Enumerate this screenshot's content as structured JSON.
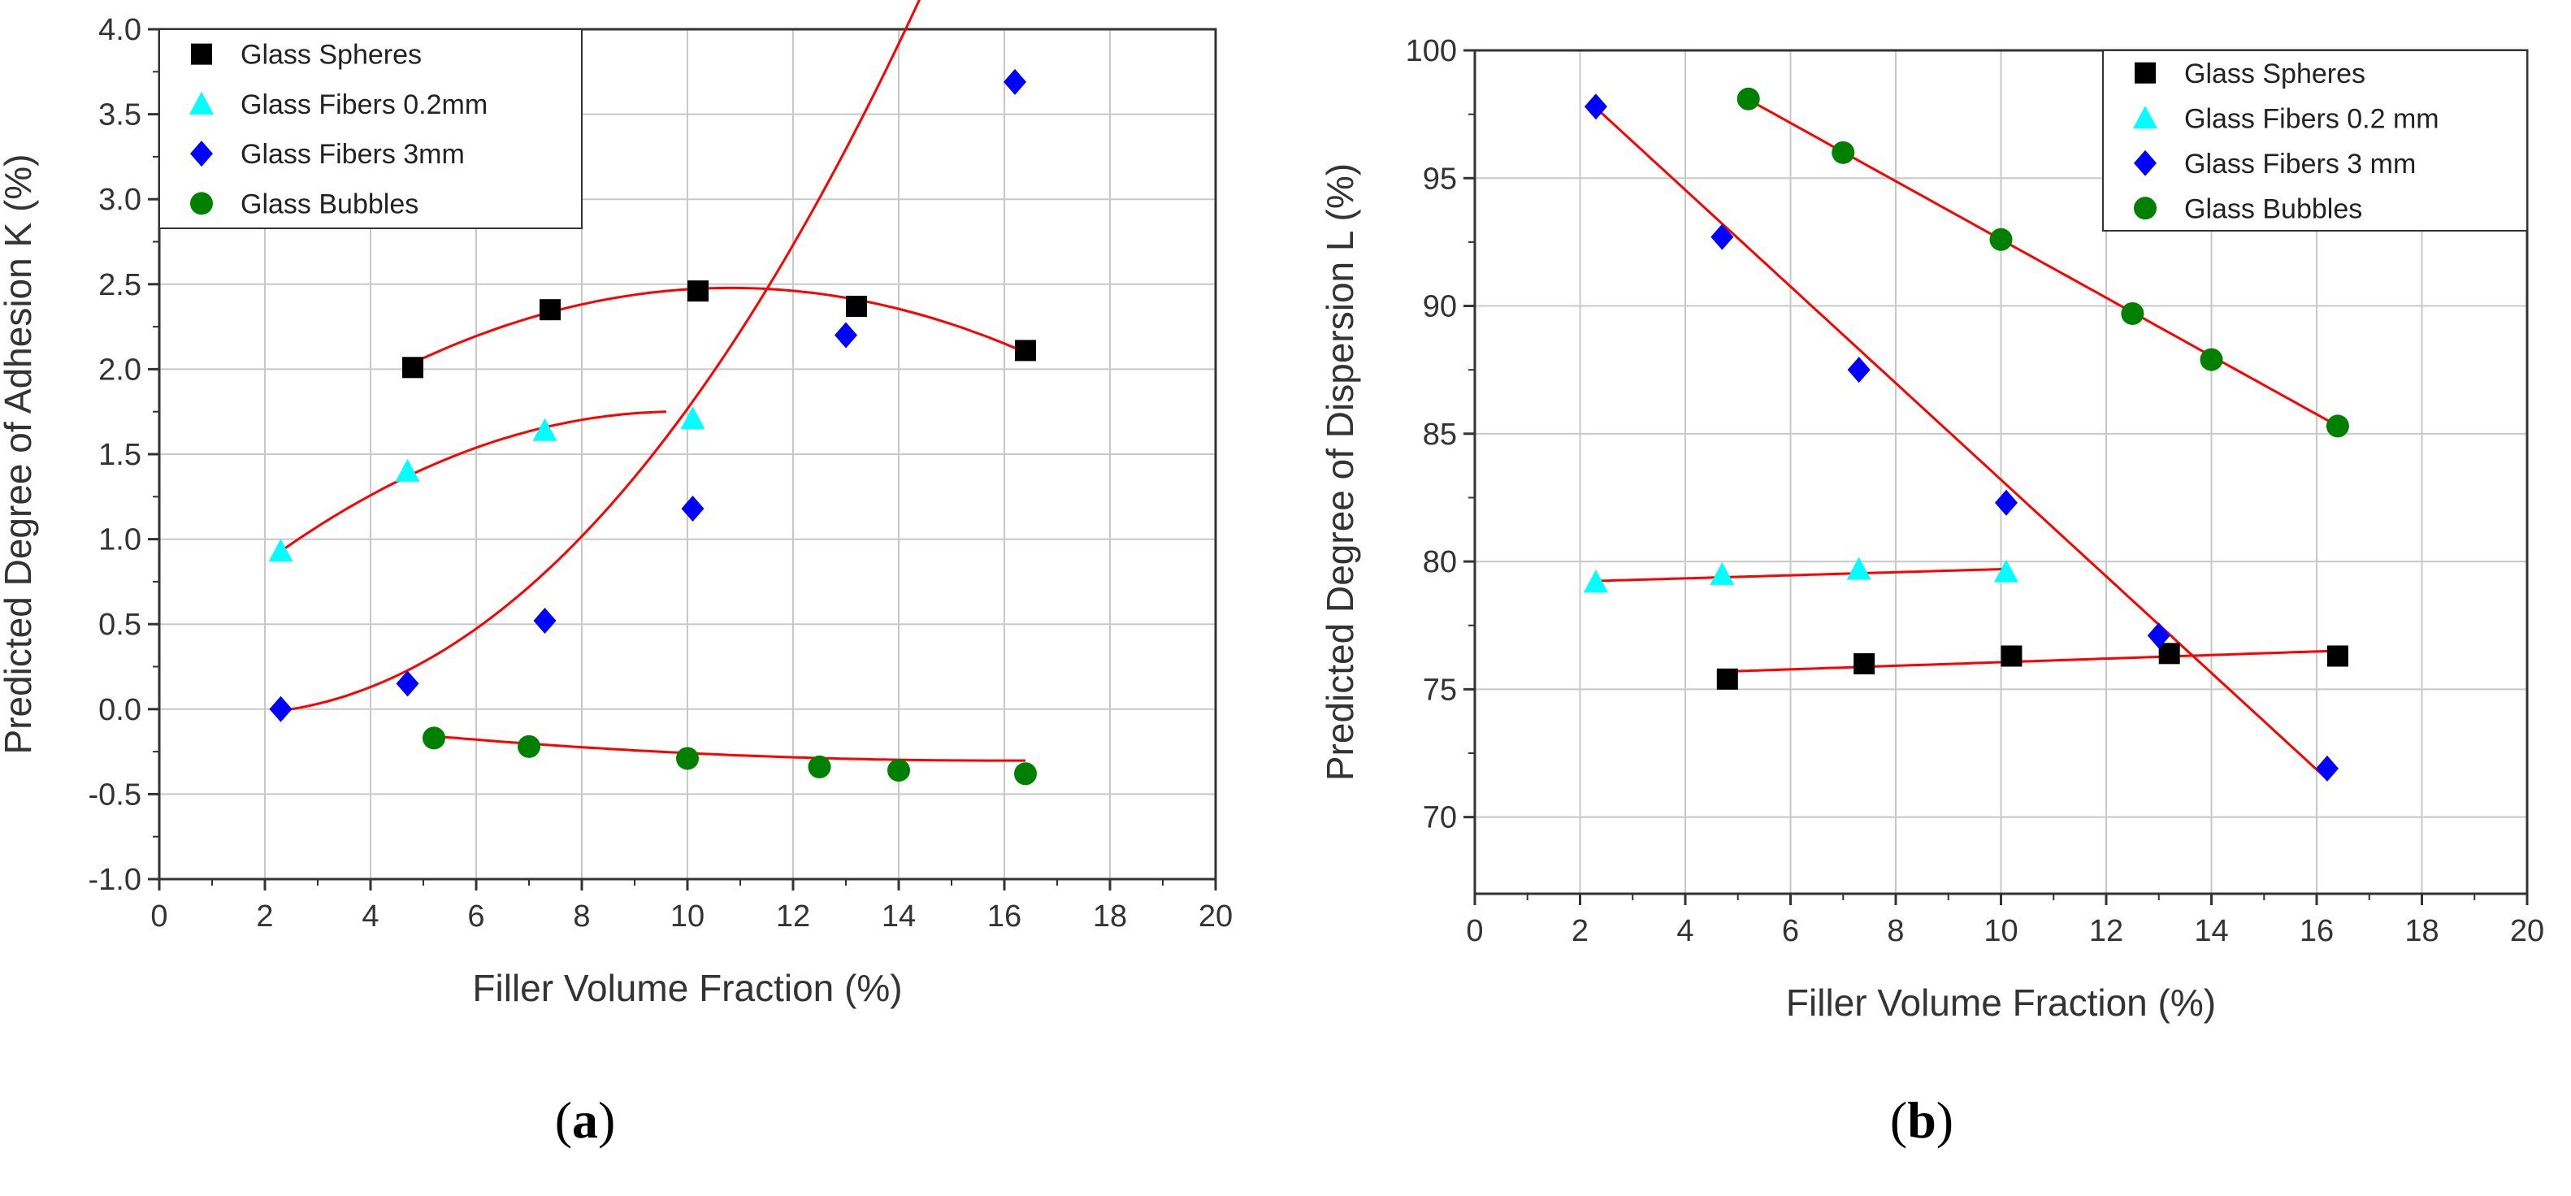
{
  "chart_data": [
    {
      "type": "scatter",
      "panel_label": {
        "open": "(",
        "letter": "a",
        "close": ")"
      },
      "xlabel": "Filler Volume Fraction (%)",
      "ylabel": "Predicted Degree of Adhesion K (%)",
      "xlim": [
        0,
        20
      ],
      "ylim": [
        -1.0,
        4.0
      ],
      "xticks": [
        0,
        2,
        4,
        6,
        8,
        10,
        12,
        14,
        16,
        18,
        20
      ],
      "yticks": [
        -1.0,
        -0.5,
        0.0,
        0.5,
        1.0,
        1.5,
        2.0,
        2.5,
        3.0,
        3.5,
        4.0
      ],
      "xtick_labels": [
        "0",
        "2",
        "4",
        "6",
        "8",
        "10",
        "12",
        "14",
        "16",
        "18",
        "20"
      ],
      "ytick_labels": [
        "-1.0",
        "-0.5",
        "0.0",
        "0.5",
        "1.0",
        "1.5",
        "2.0",
        "2.5",
        "3.0",
        "3.5",
        "4.0"
      ],
      "grid": true,
      "legend_position": "top-left",
      "series": [
        {
          "name": "Glass Spheres",
          "marker": "square",
          "color": "#000000",
          "x": [
            4.8,
            7.4,
            10.2,
            13.2,
            16.4
          ],
          "y": [
            2.01,
            2.35,
            2.46,
            2.37,
            2.11
          ],
          "fit": {
            "kind": "poly",
            "coef": [
              1.05,
              0.264,
              -0.0122
            ],
            "range": [
              4.8,
              16.4
            ]
          }
        },
        {
          "name": "Glass Fibers 0.2mm",
          "marker": "triangle",
          "color": "#00ffff",
          "x": [
            2.3,
            4.7,
            7.3,
            10.1
          ],
          "y": [
            0.93,
            1.4,
            1.64,
            1.71
          ],
          "fit": {
            "kind": "poly",
            "coef": [
              0.35,
              0.285,
              -0.0145
            ],
            "range": [
              2.3,
              9.6
            ]
          }
        },
        {
          "name": "Glass Fibers 3mm",
          "marker": "diamond",
          "color": "#0000ff",
          "x": [
            2.3,
            4.7,
            7.3,
            10.1,
            13.0,
            16.2
          ],
          "y": [
            0.0,
            0.15,
            0.52,
            1.18,
            2.2,
            3.69
          ],
          "fit": {
            "kind": "poly",
            "coef": [
              0.017,
              -0.064,
              0.0225,
              0.00014
            ],
            "range": [
              2.3,
              16.2
            ]
          }
        },
        {
          "name": "Glass Bubbles",
          "marker": "circle",
          "color": "#008000",
          "x": [
            5.2,
            7.0,
            10.0,
            12.5,
            14.0,
            16.4
          ],
          "y": [
            -0.17,
            -0.22,
            -0.29,
            -0.34,
            -0.36,
            -0.38
          ],
          "fit": {
            "kind": "poly",
            "coef": [
              0.0135,
              -0.0396,
              0.00124
            ],
            "range": [
              5.2,
              16.4
            ]
          }
        }
      ]
    },
    {
      "type": "scatter",
      "panel_label": {
        "open": "(",
        "letter": "b",
        "close": ")"
      },
      "xlabel": "Filler Volume Fraction (%)",
      "ylabel": "Predicted Degree of Dispersion L (%)",
      "xlim": [
        0,
        20
      ],
      "ylim": [
        67,
        100
      ],
      "xticks": [
        0,
        2,
        4,
        6,
        8,
        10,
        12,
        14,
        16,
        18,
        20
      ],
      "yticks": [
        70,
        75,
        80,
        85,
        90,
        95,
        100
      ],
      "xtick_labels": [
        "0",
        "2",
        "4",
        "6",
        "8",
        "10",
        "12",
        "14",
        "16",
        "18",
        "20"
      ],
      "ytick_labels": [
        "70",
        "75",
        "80",
        "85",
        "90",
        "95",
        "100"
      ],
      "grid": true,
      "legend_position": "top-right",
      "series": [
        {
          "name": "Glass Spheres",
          "marker": "square",
          "color": "#000000",
          "x": [
            4.8,
            7.4,
            10.2,
            13.2,
            16.4
          ],
          "y": [
            75.4,
            76.0,
            76.3,
            76.4,
            76.3
          ],
          "fit": {
            "kind": "poly",
            "coef": [
              75.36,
              0.07
            ],
            "range": [
              4.8,
              16.4
            ]
          }
        },
        {
          "name": "Glass Fibers 0.2 mm",
          "marker": "triangle",
          "color": "#00ffff",
          "x": [
            2.3,
            4.7,
            7.3,
            10.1
          ],
          "y": [
            79.2,
            79.5,
            79.7,
            79.6
          ],
          "fit": {
            "kind": "poly",
            "coef": [
              79.1,
              0.06
            ],
            "range": [
              2.3,
              10.1
            ]
          }
        },
        {
          "name": "Glass Fibers 3 mm",
          "marker": "diamond",
          "color": "#0000ff",
          "x": [
            2.3,
            4.7,
            7.3,
            10.1,
            13.0,
            16.2
          ],
          "y": [
            97.8,
            92.7,
            87.5,
            82.3,
            77.1,
            71.9
          ],
          "fit": {
            "kind": "poly",
            "coef": [
              102.1,
              -1.89
            ],
            "range": [
              2.3,
              16.2
            ]
          }
        },
        {
          "name": "Glass Bubbles",
          "marker": "circle",
          "color": "#008000",
          "x": [
            5.2,
            7.0,
            10.0,
            12.5,
            14.0,
            16.4
          ],
          "y": [
            98.1,
            96.0,
            92.6,
            89.7,
            87.9,
            85.3
          ],
          "fit": {
            "kind": "poly",
            "coef": [
              104.0,
              -1.14
            ],
            "range": [
              5.2,
              16.4
            ]
          }
        }
      ]
    }
  ],
  "colors": {
    "fit_line": "#ff0000",
    "grid": "#c8c8c8",
    "axis": "#333333"
  }
}
